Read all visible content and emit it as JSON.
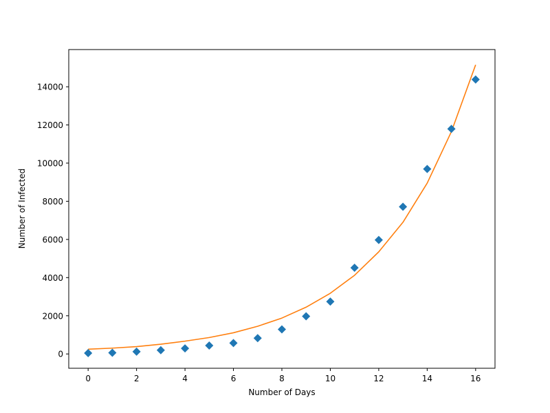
{
  "chart_data": {
    "type": "scatter",
    "title": "",
    "xlabel": "Number of Days",
    "ylabel": "Number of Infected",
    "xlim": [
      -0.8,
      16.8
    ],
    "ylim": [
      -750,
      15950
    ],
    "xticks": [
      0,
      2,
      4,
      6,
      8,
      10,
      12,
      14,
      16
    ],
    "yticks": [
      0,
      2000,
      4000,
      6000,
      8000,
      10000,
      12000,
      14000
    ],
    "grid": false,
    "series": [
      {
        "kind": "scatter",
        "marker": "diamond",
        "color": "#1f77b4",
        "x": [
          0,
          1,
          2,
          3,
          4,
          5,
          6,
          7,
          8,
          9,
          10,
          11,
          12,
          13,
          14,
          15,
          16
        ],
        "y": [
          45,
          62,
          121,
          198,
          291,
          440,
          571,
          830,
          1287,
          1975,
          2744,
          4515,
          5974,
          7711,
          9692,
          11791,
          14380
        ]
      },
      {
        "kind": "line",
        "color": "#ff7f0e",
        "x": [
          0,
          1,
          2,
          3,
          4,
          5,
          6,
          7,
          8,
          9,
          10,
          11,
          12,
          13,
          14,
          15,
          16
        ],
        "y": [
          250,
          305,
          385,
          510,
          670,
          860,
          1110,
          1450,
          1880,
          2450,
          3180,
          4120,
          5350,
          6900,
          8950,
          11650,
          15150
        ]
      }
    ]
  }
}
